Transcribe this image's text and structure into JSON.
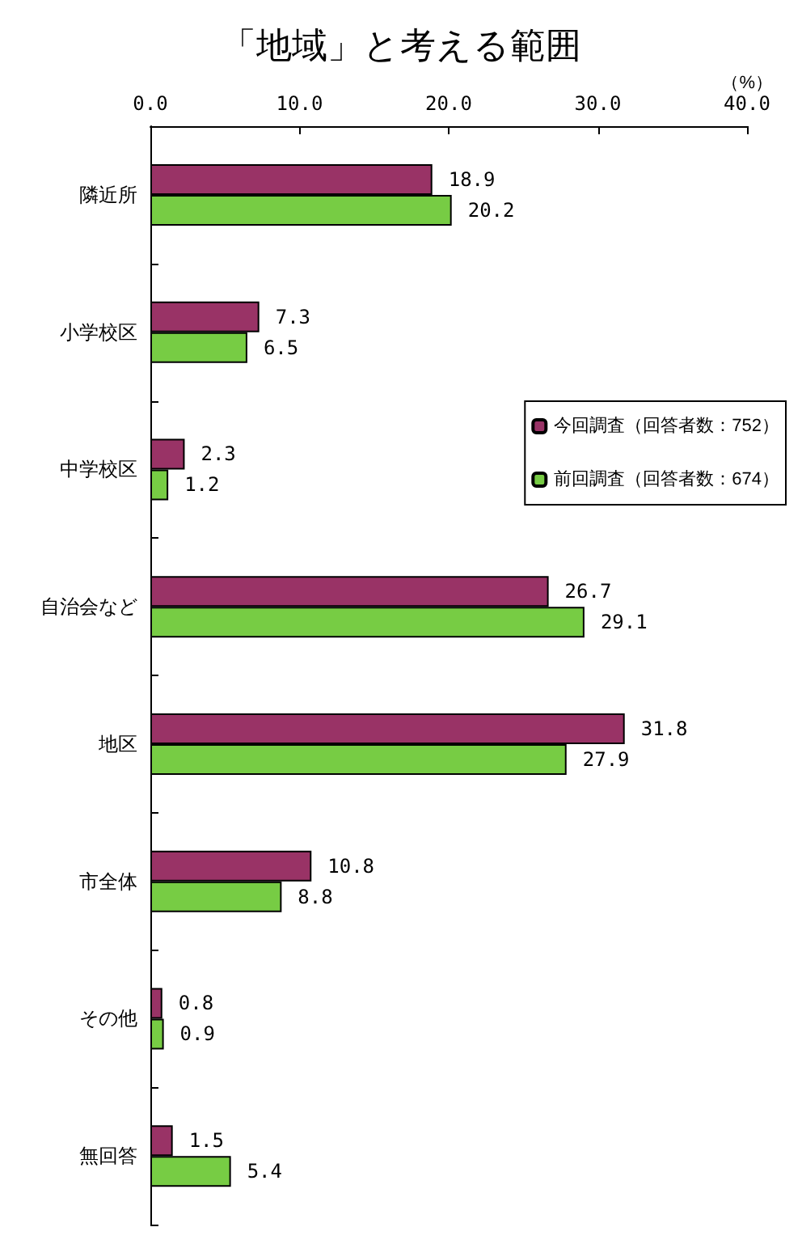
{
  "chart_data": {
    "type": "bar",
    "orientation": "horizontal",
    "title": "「地域」と考える範囲",
    "categories": [
      "隣近所",
      "小学校区",
      "中学校区",
      "自治会など",
      "地区",
      "市全体",
      "その他",
      "無回答"
    ],
    "series": [
      {
        "name": "今回調査（回答者数：752）",
        "color": "#993366",
        "values": [
          18.9,
          7.3,
          2.3,
          26.7,
          31.8,
          10.8,
          0.8,
          1.5
        ]
      },
      {
        "name": "前回調査（回答者数：674）",
        "color": "#77cc44",
        "values": [
          20.2,
          6.5,
          1.2,
          29.1,
          27.9,
          8.8,
          0.9,
          5.4
        ]
      }
    ],
    "xlim": [
      0,
      40
    ],
    "xticks": [
      {
        "value": 0,
        "label": "0.0"
      },
      {
        "value": 10,
        "label": "10.0"
      },
      {
        "value": 20,
        "label": "20.0"
      },
      {
        "value": 30,
        "label": "30.0"
      },
      {
        "value": 40,
        "label": "40.0"
      }
    ],
    "annotations": [
      "（%）"
    ],
    "data_labels": true,
    "legend": "right",
    "grid": false
  }
}
